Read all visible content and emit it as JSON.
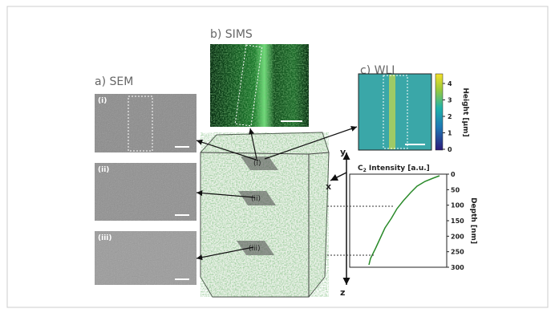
{
  "figure": {
    "panels": {
      "sem": "a) SEM",
      "sims": "b) SIMS",
      "wli": "c) WLI"
    },
    "sem_labels": [
      "(i)",
      "(ii)",
      "(iii)"
    ],
    "cube_labels": [
      "(i)",
      "(ii)",
      "(iii)"
    ],
    "axes": {
      "x": "x",
      "y": "y",
      "z": "z"
    },
    "colorbar": {
      "label": "Height [μm]",
      "ticks": [
        0,
        1,
        2,
        3,
        4
      ]
    },
    "profile": {
      "label_main": "C",
      "label_sub": "2",
      "label_rest": " Intensity [a.u.]",
      "depth_label": "Depth [nm]",
      "depth_ticks": [
        0,
        50,
        100,
        150,
        200,
        250,
        300
      ]
    }
  }
}
